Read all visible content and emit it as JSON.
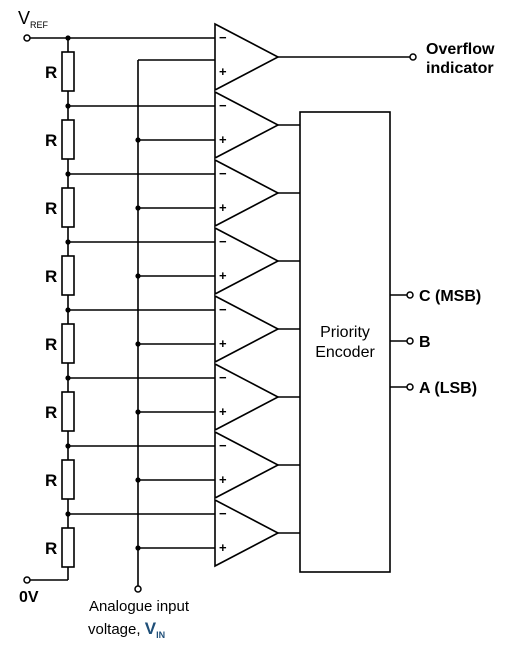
{
  "vref": {
    "main": "V",
    "sub": "REF"
  },
  "ground_label": "0V",
  "resistor_label": "R",
  "resistor_count": 8,
  "comparator_count": 8,
  "comparator_pins": {
    "inverting": "−",
    "non_inverting": "+"
  },
  "encoder": {
    "line1": "Priority",
    "line2": "Encoder"
  },
  "overflow": {
    "line1": "Overflow",
    "line2": "indicator"
  },
  "outputs": [
    {
      "label": "C (MSB)"
    },
    {
      "label": "B"
    },
    {
      "label": "A (LSB)"
    }
  ],
  "input": {
    "line1": "Analogue input",
    "line2_prefix": "voltage, ",
    "symbol_main": "V",
    "symbol_sub": "IN"
  },
  "colors": {
    "line": "#000000",
    "vin_symbol": "#1f4f78",
    "background": "#ffffff"
  }
}
